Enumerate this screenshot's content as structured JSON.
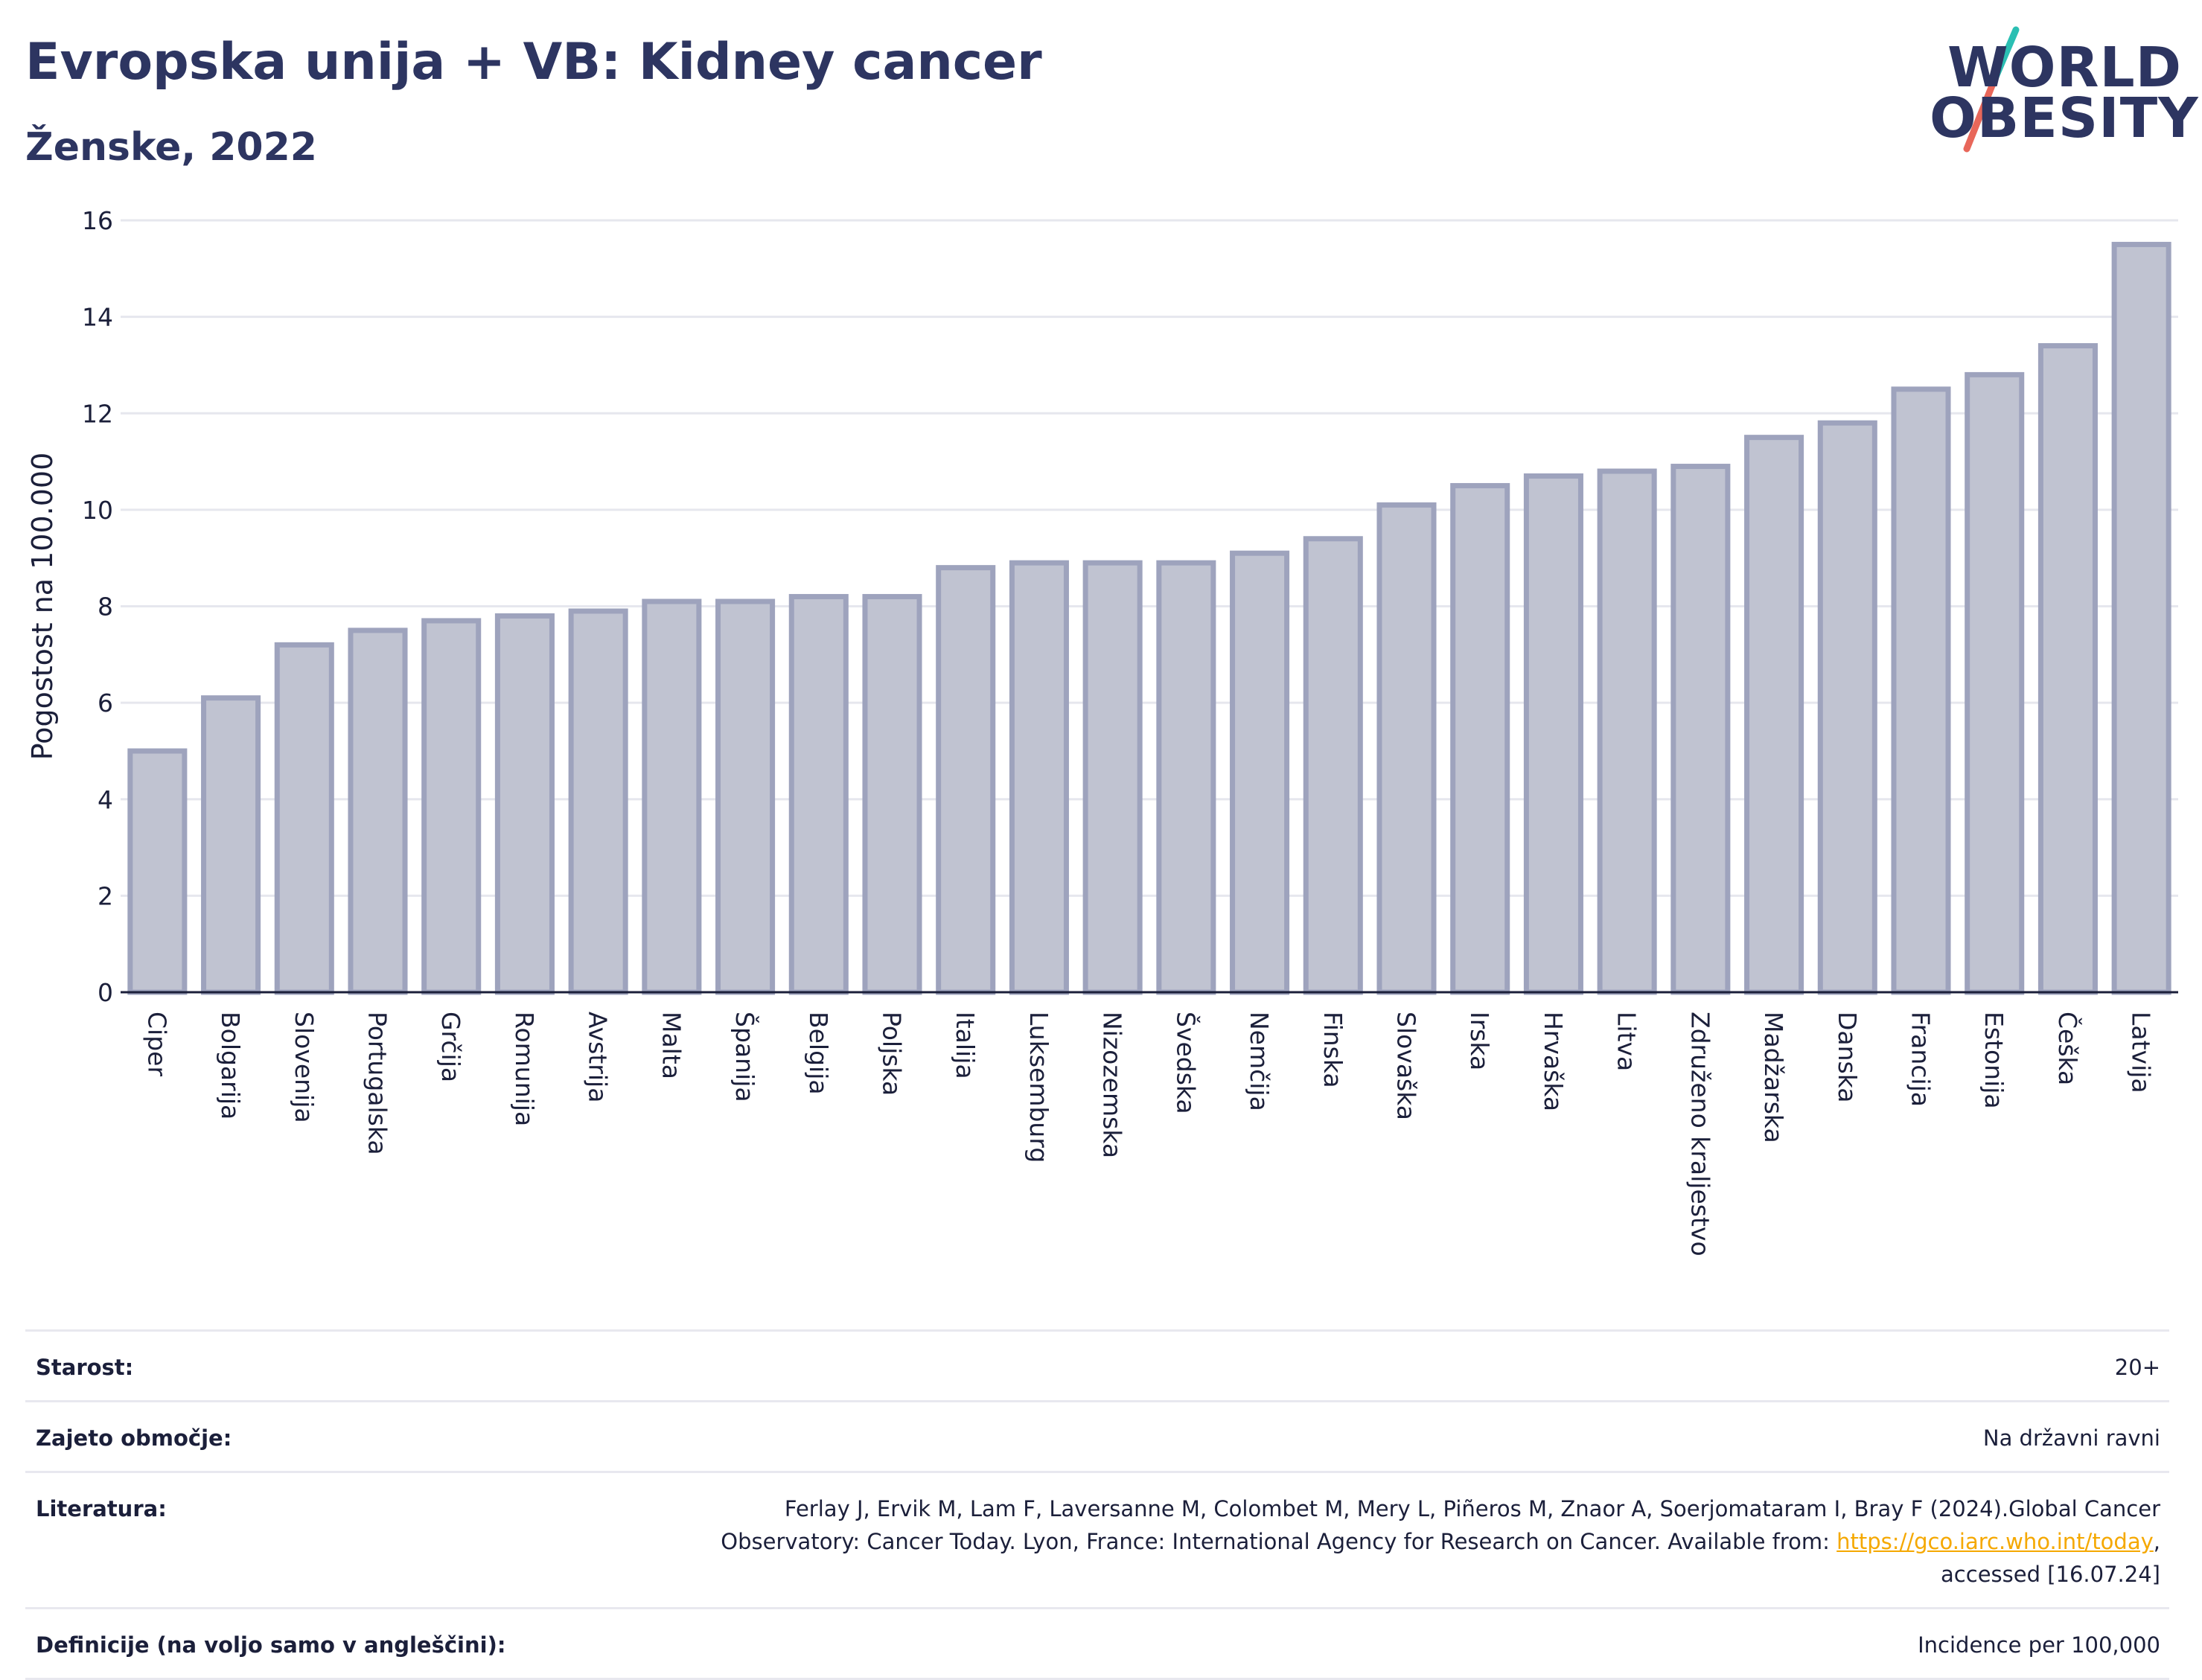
{
  "header": {
    "title": "Evropska unija + VB: Kidney cancer",
    "subtitle": "Ženske, 2022"
  },
  "logo": {
    "line1": "WORLD",
    "line2": "OBESITY",
    "colors": {
      "text": "#2d3561",
      "slash_top": "#2bbfb3",
      "slash_bottom": "#e8675a"
    }
  },
  "chart_data": {
    "type": "bar",
    "title": "Evropska unija + VB: Kidney cancer",
    "subtitle": "Ženske, 2022",
    "xlabel": "",
    "ylabel": "Pogostost na 100.000",
    "ylim": [
      0,
      16
    ],
    "yticks": [
      0,
      2,
      4,
      6,
      8,
      10,
      12,
      14,
      16
    ],
    "grid": true,
    "legend": "none",
    "colors": {
      "bar_fill": "#c0c3d1",
      "bar_stroke": "#9ea3bd",
      "axis": "#1b1f3a",
      "grid": "#e6e7ee"
    },
    "categories": [
      "Ciper",
      "Bolgarija",
      "Slovenija",
      "Portugalska",
      "Grčija",
      "Romunija",
      "Avstrija",
      "Malta",
      "Španija",
      "Belgija",
      "Poljska",
      "Italija",
      "Luksemburg",
      "Nizozemska",
      "Švedska",
      "Nemčija",
      "Finska",
      "Slovaška",
      "Irska",
      "Hrvaška",
      "Litva",
      "Združeno kraljestvo",
      "Madžarska",
      "Danska",
      "Francija",
      "Estonija",
      "Češka",
      "Latvija"
    ],
    "values": [
      5.0,
      6.1,
      7.2,
      7.5,
      7.7,
      7.8,
      7.9,
      8.1,
      8.1,
      8.2,
      8.2,
      8.8,
      8.9,
      8.9,
      8.9,
      9.1,
      9.4,
      10.1,
      10.5,
      10.7,
      10.8,
      10.9,
      11.5,
      11.8,
      12.5,
      12.8,
      13.4,
      15.5
    ]
  },
  "meta": [
    {
      "label": "Starost:",
      "value": "20+"
    },
    {
      "label": "Zajeto območje:",
      "value": "Na državni ravni"
    },
    {
      "label": "Literatura:",
      "value_lines": [
        "Ferlay J, Ervik M, Lam F, Laversanne M, Colombet M, Mery L, Piñeros M, Znaor A, Soerjomataram I, Bray F (2024).Global Cancer",
        "Observatory: Cancer Today. Lyon, France: International Agency for Research on Cancer. Available from: ",
        "https://gco.iarc.who.int/today",
        ",",
        "accessed [16.07.24]"
      ]
    },
    {
      "label": "Definicije (na voljo samo v angleščini):",
      "value": "Incidence per 100,000"
    }
  ],
  "link_color": "#f5a800"
}
